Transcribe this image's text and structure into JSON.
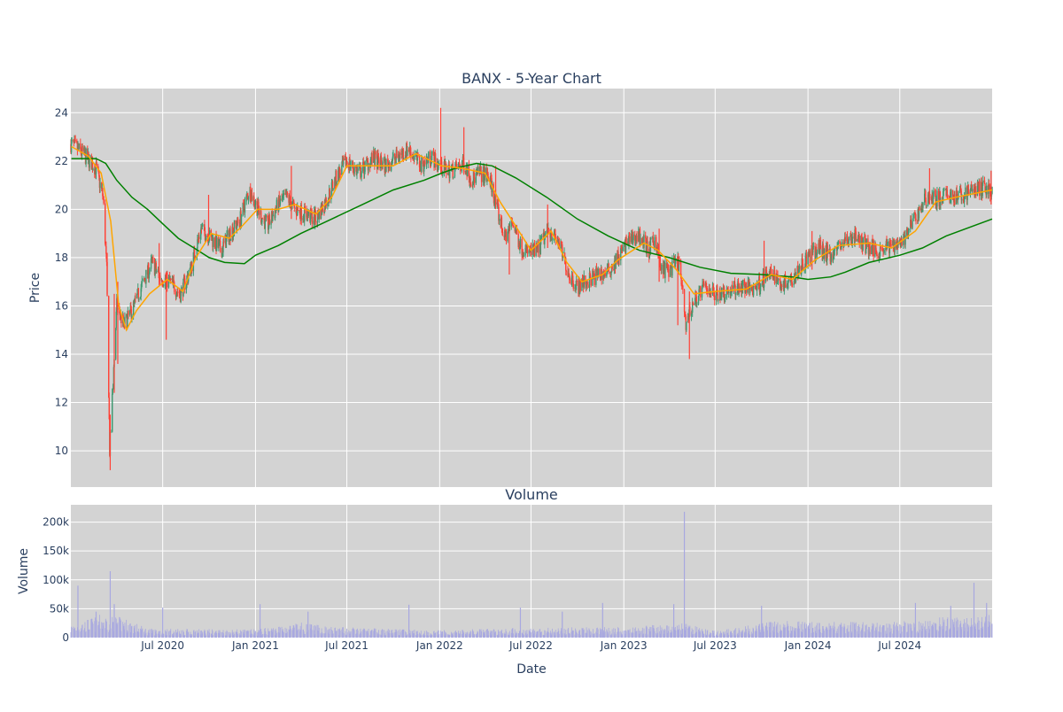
{
  "chart_data": {
    "type": "candlestick",
    "title": "BANX - 5-Year Chart",
    "price_panel": {
      "ylabel": "Price",
      "ylim": [
        8.5,
        25
      ],
      "y_ticks": [
        10,
        12,
        14,
        16,
        18,
        20,
        22,
        24
      ],
      "y_tick_labels": [
        "10",
        "12",
        "14",
        "16",
        "18",
        "20",
        "22",
        "24"
      ],
      "grid": true,
      "background": "#d3d3d3",
      "candle_colors": {
        "up": "#3d9970",
        "down": "#ff4136"
      },
      "price_path": [
        [
          "2020-01-02",
          22.7
        ],
        [
          "2020-01-25",
          22.3
        ],
        [
          "2020-02-20",
          21.7
        ],
        [
          "2020-03-05",
          20.5
        ],
        [
          "2020-03-12",
          17.5
        ],
        [
          "2020-03-18",
          10.0
        ],
        [
          "2020-03-25",
          13.0
        ],
        [
          "2020-04-01",
          16.0
        ],
        [
          "2020-04-15",
          15.2
        ],
        [
          "2020-05-01",
          15.8
        ],
        [
          "2020-05-20",
          16.8
        ],
        [
          "2020-06-10",
          17.8
        ],
        [
          "2020-06-25",
          17.2
        ],
        [
          "2020-07-15",
          17.0
        ],
        [
          "2020-08-05",
          16.5
        ],
        [
          "2020-08-25",
          17.5
        ],
        [
          "2020-09-15",
          19.2
        ],
        [
          "2020-10-05",
          18.8
        ],
        [
          "2020-10-25",
          18.3
        ],
        [
          "2020-11-10",
          19.0
        ],
        [
          "2020-11-30",
          19.5
        ],
        [
          "2020-12-20",
          20.8
        ],
        [
          "2021-01-10",
          19.8
        ],
        [
          "2021-01-25",
          19.3
        ],
        [
          "2021-02-15",
          20.2
        ],
        [
          "2021-03-05",
          20.5
        ],
        [
          "2021-03-20",
          20.0
        ],
        [
          "2021-04-10",
          19.8
        ],
        [
          "2021-05-01",
          19.6
        ],
        [
          "2021-05-20",
          20.3
        ],
        [
          "2021-06-10",
          21.3
        ],
        [
          "2021-07-01",
          22.0
        ],
        [
          "2021-07-25",
          21.5
        ],
        [
          "2021-08-20",
          22.1
        ],
        [
          "2021-09-15",
          21.8
        ],
        [
          "2021-10-10",
          22.2
        ],
        [
          "2021-11-01",
          22.5
        ],
        [
          "2021-11-25",
          21.8
        ],
        [
          "2021-12-15",
          22.2
        ],
        [
          "2022-01-05",
          21.7
        ],
        [
          "2022-01-25",
          21.6
        ],
        [
          "2022-02-20",
          21.9
        ],
        [
          "2022-03-05",
          21.2
        ],
        [
          "2022-03-20",
          21.5
        ],
        [
          "2022-04-10",
          21.3
        ],
        [
          "2022-04-25",
          20.0
        ],
        [
          "2022-05-10",
          18.8
        ],
        [
          "2022-05-25",
          19.5
        ],
        [
          "2022-06-10",
          18.5
        ],
        [
          "2022-06-25",
          18.2
        ],
        [
          "2022-07-15",
          18.3
        ],
        [
          "2022-08-05",
          19.2
        ],
        [
          "2022-08-25",
          18.6
        ],
        [
          "2022-09-15",
          17.3
        ],
        [
          "2022-10-01",
          16.8
        ],
        [
          "2022-10-20",
          17.0
        ],
        [
          "2022-11-10",
          17.3
        ],
        [
          "2022-12-01",
          17.4
        ],
        [
          "2022-12-20",
          18.0
        ],
        [
          "2023-01-10",
          18.7
        ],
        [
          "2023-02-01",
          18.9
        ],
        [
          "2023-02-20",
          18.3
        ],
        [
          "2023-03-05",
          18.8
        ],
        [
          "2023-03-15",
          17.5
        ],
        [
          "2023-04-01",
          17.5
        ],
        [
          "2023-04-20",
          17.8
        ],
        [
          "2023-05-04",
          15.3
        ],
        [
          "2023-05-20",
          16.2
        ],
        [
          "2023-06-10",
          16.8
        ],
        [
          "2023-07-01",
          16.5
        ],
        [
          "2023-07-25",
          16.6
        ],
        [
          "2023-08-20",
          16.8
        ],
        [
          "2023-09-15",
          16.7
        ],
        [
          "2023-10-10",
          17.2
        ],
        [
          "2023-10-25",
          17.3
        ],
        [
          "2023-11-10",
          16.9
        ],
        [
          "2023-12-01",
          17.2
        ],
        [
          "2024-01-01",
          18.0
        ],
        [
          "2024-01-25",
          18.4
        ],
        [
          "2024-02-15",
          18.1
        ],
        [
          "2024-03-10",
          18.6
        ],
        [
          "2024-04-01",
          18.9
        ],
        [
          "2024-04-25",
          18.5
        ],
        [
          "2024-05-20",
          18.3
        ],
        [
          "2024-06-15",
          18.5
        ],
        [
          "2024-07-10",
          18.8
        ],
        [
          "2024-08-05",
          19.8
        ],
        [
          "2024-08-25",
          20.6
        ],
        [
          "2024-09-15",
          20.4
        ],
        [
          "2024-10-05",
          20.6
        ],
        [
          "2024-10-25",
          20.5
        ],
        [
          "2024-11-20",
          20.8
        ],
        [
          "2024-12-15",
          20.9
        ],
        [
          "2024-12-31",
          20.8
        ]
      ],
      "spikes": [
        [
          "2020-03-19",
          9.2,
          11.5
        ],
        [
          "2020-03-13",
          16.5,
          18.2
        ],
        [
          "2020-03-27",
          12.4,
          16.5
        ],
        [
          "2020-04-03",
          13.6,
          17.0
        ],
        [
          "2020-06-24",
          16.8,
          18.6
        ],
        [
          "2020-07-08",
          14.6,
          17.4
        ],
        [
          "2020-09-30",
          18.7,
          20.6
        ],
        [
          "2021-03-13",
          19.6,
          21.8
        ],
        [
          "2022-01-03",
          21.6,
          24.2
        ],
        [
          "2022-02-18",
          21.5,
          23.4
        ],
        [
          "2022-04-22",
          20.1,
          21.8
        ],
        [
          "2022-05-19",
          17.3,
          19.3
        ],
        [
          "2022-08-03",
          18.4,
          20.2
        ],
        [
          "2023-03-12",
          17.0,
          19.2
        ],
        [
          "2023-04-18",
          15.2,
          18.0
        ],
        [
          "2023-05-11",
          13.8,
          16.6
        ],
        [
          "2023-10-06",
          16.9,
          18.7
        ],
        [
          "2024-01-09",
          17.5,
          19.1
        ],
        [
          "2024-08-29",
          20.2,
          21.7
        ],
        [
          "2024-12-29",
          20.2,
          21.6
        ]
      ],
      "sma_short": {
        "color": "#ffa500",
        "path": [
          [
            "2020-01-02",
            22.6
          ],
          [
            "2020-02-05",
            22.2
          ],
          [
            "2020-03-01",
            21.5
          ],
          [
            "2020-03-20",
            19.5
          ],
          [
            "2020-04-05",
            16.0
          ],
          [
            "2020-04-20",
            15.0
          ],
          [
            "2020-05-10",
            15.8
          ],
          [
            "2020-06-05",
            16.5
          ],
          [
            "2020-07-10",
            17.1
          ],
          [
            "2020-08-10",
            16.6
          ],
          [
            "2020-09-05",
            18.0
          ],
          [
            "2020-10-05",
            19.0
          ],
          [
            "2020-11-10",
            18.8
          ],
          [
            "2020-12-05",
            19.3
          ],
          [
            "2021-01-05",
            20.0
          ],
          [
            "2021-02-15",
            20.0
          ],
          [
            "2021-03-20",
            20.2
          ],
          [
            "2021-05-01",
            19.8
          ],
          [
            "2021-06-01",
            20.5
          ],
          [
            "2021-07-01",
            21.8
          ],
          [
            "2021-08-15",
            21.8
          ],
          [
            "2021-10-01",
            21.8
          ],
          [
            "2021-11-15",
            22.3
          ],
          [
            "2022-01-05",
            21.8
          ],
          [
            "2022-02-15",
            21.7
          ],
          [
            "2022-04-01",
            21.5
          ],
          [
            "2022-05-01",
            20.3
          ],
          [
            "2022-06-01",
            19.3
          ],
          [
            "2022-07-01",
            18.3
          ],
          [
            "2022-08-10",
            19.1
          ],
          [
            "2022-09-10",
            17.8
          ],
          [
            "2022-10-10",
            17.0
          ],
          [
            "2022-11-20",
            17.3
          ],
          [
            "2022-12-20",
            17.9
          ],
          [
            "2023-02-10",
            18.6
          ],
          [
            "2023-03-10",
            18.3
          ],
          [
            "2023-04-15",
            17.5
          ],
          [
            "2023-05-20",
            16.5
          ],
          [
            "2023-07-01",
            16.6
          ],
          [
            "2023-09-01",
            16.7
          ],
          [
            "2023-10-20",
            17.3
          ],
          [
            "2023-12-01",
            17.1
          ],
          [
            "2024-01-15",
            17.9
          ],
          [
            "2024-03-01",
            18.5
          ],
          [
            "2024-05-01",
            18.6
          ],
          [
            "2024-06-15",
            18.4
          ],
          [
            "2024-08-01",
            19.1
          ],
          [
            "2024-09-10",
            20.3
          ],
          [
            "2024-10-20",
            20.5
          ],
          [
            "2024-12-31",
            20.8
          ]
        ]
      },
      "sma_long": {
        "color": "#008000",
        "path": [
          [
            "2020-01-02",
            22.1
          ],
          [
            "2020-02-20",
            22.1
          ],
          [
            "2020-03-10",
            21.9
          ],
          [
            "2020-04-01",
            21.2
          ],
          [
            "2020-05-01",
            20.5
          ],
          [
            "2020-06-01",
            20.0
          ],
          [
            "2020-07-01",
            19.4
          ],
          [
            "2020-08-01",
            18.8
          ],
          [
            "2020-09-01",
            18.4
          ],
          [
            "2020-10-01",
            18.0
          ],
          [
            "2020-11-01",
            17.8
          ],
          [
            "2020-12-10",
            17.75
          ],
          [
            "2021-01-01",
            18.1
          ],
          [
            "2021-02-15",
            18.5
          ],
          [
            "2021-04-01",
            19.0
          ],
          [
            "2021-06-01",
            19.6
          ],
          [
            "2021-08-01",
            20.2
          ],
          [
            "2021-10-01",
            20.8
          ],
          [
            "2021-12-01",
            21.2
          ],
          [
            "2022-01-05",
            21.5
          ],
          [
            "2022-02-01",
            21.7
          ],
          [
            "2022-03-15",
            21.9
          ],
          [
            "2022-04-15",
            21.8
          ],
          [
            "2022-06-01",
            21.3
          ],
          [
            "2022-08-01",
            20.5
          ],
          [
            "2022-10-01",
            19.6
          ],
          [
            "2022-12-01",
            18.9
          ],
          [
            "2023-02-01",
            18.3
          ],
          [
            "2023-04-01",
            18.0
          ],
          [
            "2023-06-01",
            17.6
          ],
          [
            "2023-08-01",
            17.35
          ],
          [
            "2023-10-01",
            17.3
          ],
          [
            "2023-12-01",
            17.2
          ],
          [
            "2024-01-01",
            17.1
          ],
          [
            "2024-02-15",
            17.2
          ],
          [
            "2024-03-15",
            17.4
          ],
          [
            "2024-05-01",
            17.8
          ],
          [
            "2024-07-01",
            18.1
          ],
          [
            "2024-08-15",
            18.4
          ],
          [
            "2024-10-01",
            18.9
          ],
          [
            "2024-12-31",
            19.6
          ]
        ]
      }
    },
    "volume_panel": {
      "title": "Volume",
      "ylabel": "Volume",
      "xlabel": "Date",
      "ylim": [
        0,
        230000
      ],
      "y_ticks": [
        0,
        50000,
        100000,
        150000,
        200000
      ],
      "y_tick_labels": [
        "0",
        "50k",
        "100k",
        "150k",
        "200k"
      ],
      "bar_color": "#a8a8e0",
      "grid": true,
      "background": "#d3d3d3",
      "baseline_path": [
        [
          "2020-01-02",
          16000
        ],
        [
          "2020-03-01",
          28000
        ],
        [
          "2020-04-15",
          24000
        ],
        [
          "2020-06-01",
          11000
        ],
        [
          "2021-01-01",
          10000
        ],
        [
          "2021-04-01",
          18000
        ],
        [
          "2021-06-01",
          13000
        ],
        [
          "2022-01-01",
          9000
        ],
        [
          "2022-07-01",
          12000
        ],
        [
          "2023-01-01",
          13000
        ],
        [
          "2023-05-01",
          17000
        ],
        [
          "2023-07-01",
          8000
        ],
        [
          "2023-11-01",
          20000
        ],
        [
          "2024-06-01",
          18000
        ],
        [
          "2024-12-31",
          30000
        ]
      ],
      "peaks": [
        [
          "2020-01-15",
          90000
        ],
        [
          "2020-02-20",
          45000
        ],
        [
          "2020-03-19",
          115000
        ],
        [
          "2020-03-27",
          58000
        ],
        [
          "2020-07-01",
          52000
        ],
        [
          "2021-01-10",
          58000
        ],
        [
          "2021-04-15",
          45000
        ],
        [
          "2021-11-01",
          57000
        ],
        [
          "2022-06-10",
          52000
        ],
        [
          "2022-09-01",
          45000
        ],
        [
          "2022-11-20",
          60000
        ],
        [
          "2023-04-10",
          58000
        ],
        [
          "2023-05-01",
          218000
        ],
        [
          "2023-10-01",
          55000
        ],
        [
          "2024-08-01",
          60000
        ],
        [
          "2024-10-10",
          55000
        ],
        [
          "2024-11-25",
          95000
        ],
        [
          "2024-12-20",
          60000
        ]
      ]
    },
    "x_axis": {
      "xlim": [
        "2020-01-01",
        "2024-12-31"
      ],
      "ticks": [
        "2020-07-01",
        "2021-01-01",
        "2021-07-01",
        "2022-01-01",
        "2022-07-01",
        "2023-01-01",
        "2023-07-01",
        "2024-01-01",
        "2024-07-01"
      ],
      "tick_labels": [
        "Jul 2020",
        "Jan 2021",
        "Jul 2021",
        "Jan 2022",
        "Jul 2022",
        "Jan 2023",
        "Jul 2023",
        "Jan 2024",
        "Jul 2024"
      ]
    }
  }
}
